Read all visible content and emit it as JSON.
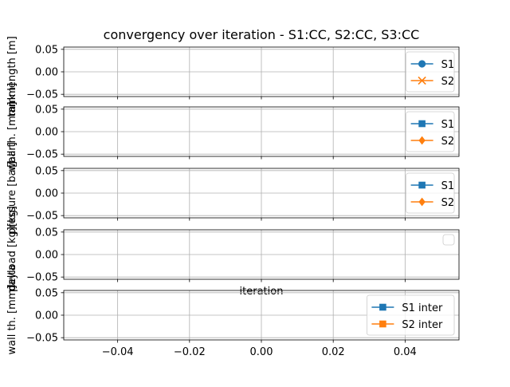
{
  "chart_data": {
    "type": "line",
    "title": "convergency over iteration - S1:CC, S2:CC, S3:CC",
    "xlabel": "iteration",
    "grid": true,
    "x_ticks": [
      "−0.04",
      "−0.02",
      "0.00",
      "0.02",
      "0.04"
    ],
    "x_tick_values": [
      -0.04,
      -0.02,
      0.0,
      0.02,
      0.04
    ],
    "xlim": [
      -0.055,
      0.055
    ],
    "panels": [
      {
        "ylabel": "tank length [m]",
        "ylabel_overlap": "mm]",
        "ylim": [
          -0.055,
          0.055
        ],
        "y_ticks": [
          "0.05",
          "0.00",
          "−0.05"
        ],
        "y_tick_values": [
          0.05,
          0.0,
          -0.05
        ],
        "legend_position": "upper-right",
        "series": [
          {
            "name": "S1",
            "color": "#1f77b4",
            "marker": "circle",
            "x": [],
            "y": []
          },
          {
            "name": "S2",
            "color": "#ff7f0e",
            "marker": "x",
            "x": [],
            "y": []
          }
        ]
      },
      {
        "ylabel": "wall th. [mm]",
        "ylabel_overlap": "[bar]",
        "ylim": [
          -0.055,
          0.055
        ],
        "y_ticks": [
          "0.05",
          "0.00",
          "−0.05"
        ],
        "y_tick_values": [
          0.05,
          0.0,
          -0.05
        ],
        "legend_position": "upper-right",
        "series": [
          {
            "name": "S1",
            "color": "#1f77b4",
            "marker": "square",
            "x": [],
            "y": []
          },
          {
            "name": "S2",
            "color": "#ff7f0e",
            "marker": "diamond",
            "x": [],
            "y": []
          }
        ]
      },
      {
        "ylabel": "pressure [bar]",
        "ylabel_overlap": "[kg]",
        "ylim": [
          -0.055,
          0.055
        ],
        "y_ticks": [
          "0.05",
          "0.00",
          "−0.05"
        ],
        "y_tick_values": [
          0.05,
          0.0,
          -0.05
        ],
        "legend_position": "upper-right",
        "series": [
          {
            "name": "S1",
            "color": "#1f77b4",
            "marker": "square",
            "x": [],
            "y": []
          },
          {
            "name": "S2",
            "color": "#ff7f0e",
            "marker": "diamond",
            "x": [],
            "y": []
          }
        ]
      },
      {
        "ylabel": "payload [kg]",
        "ylabel_overlap": "delta",
        "ylim": [
          -0.055,
          0.055
        ],
        "y_ticks": [
          "0.05",
          "0.00",
          "−0.05"
        ],
        "y_tick_values": [
          0.05,
          0.0,
          -0.05
        ],
        "legend_position": "upper-right",
        "series": []
      },
      {
        "ylabel": "wall th. [mm]",
        "ylim": [
          -0.055,
          0.055
        ],
        "y_ticks": [
          "0.05",
          "0.00",
          "−0.05"
        ],
        "y_tick_values": [
          0.05,
          0.0,
          -0.05
        ],
        "legend_position": "upper-right",
        "series": [
          {
            "name": "S1 inter",
            "color": "#1f77b4",
            "marker": "square",
            "x": [],
            "y": []
          },
          {
            "name": "S2 inter",
            "color": "#ff7f0e",
            "marker": "square",
            "x": [],
            "y": []
          }
        ]
      }
    ]
  }
}
